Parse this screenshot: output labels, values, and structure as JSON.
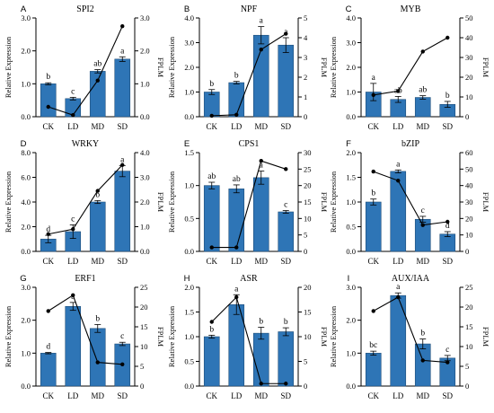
{
  "figure": {
    "bar_color": "#2e75b6",
    "bar_edge": "#1f4e79",
    "line_color": "#000000"
  },
  "chart_data": [
    {
      "type": "bar",
      "panel": "A",
      "title": "SPI2",
      "categories": [
        "CK",
        "LD",
        "MD",
        "SD"
      ],
      "ylabel": "Relative Expression",
      "y2label": "FPLM",
      "ylim": [
        0.0,
        3.0
      ],
      "yticks": [
        0.0,
        1.0,
        2.0,
        3.0
      ],
      "yticklabels": [
        "0.0",
        "1.0",
        "2.0",
        "3.0"
      ],
      "y2lim": [
        0.0,
        3.0
      ],
      "y2ticks": [
        0.0,
        1.0,
        2.0,
        3.0
      ],
      "y2ticklabels": [
        "0.0",
        "1.0",
        "2.0",
        "3.0"
      ],
      "series": [
        {
          "kind": "bar",
          "axis": "left",
          "values": [
            1.0,
            0.55,
            1.38,
            1.75
          ],
          "errors": [
            0.03,
            0.04,
            0.05,
            0.07
          ],
          "labels": [
            "b",
            "c",
            "ab",
            "a"
          ]
        },
        {
          "kind": "line",
          "axis": "right",
          "values": [
            0.3,
            0.05,
            1.1,
            2.75
          ]
        }
      ]
    },
    {
      "type": "bar",
      "panel": "B",
      "title": "NPF",
      "categories": [
        "CK",
        "LD",
        "MD",
        "SD"
      ],
      "ylabel": "Relative Expression",
      "y2label": "FPLM",
      "ylim": [
        0.0,
        4.0
      ],
      "yticks": [
        0.0,
        1.0,
        2.0,
        3.0,
        4.0
      ],
      "yticklabels": [
        "0.0",
        "1.0",
        "2.0",
        "3.0",
        "4.0"
      ],
      "y2lim": [
        0,
        5
      ],
      "y2ticks": [
        0,
        1,
        2,
        3,
        4,
        5
      ],
      "y2ticklabels": [
        "0",
        "1",
        "2",
        "3",
        "4",
        "5"
      ],
      "series": [
        {
          "kind": "bar",
          "axis": "left",
          "values": [
            1.0,
            1.38,
            3.3,
            2.9
          ],
          "errors": [
            0.1,
            0.05,
            0.35,
            0.3
          ],
          "labels": [
            "b",
            "b",
            "a",
            "a"
          ]
        },
        {
          "kind": "line",
          "axis": "right",
          "values": [
            0.05,
            0.1,
            3.4,
            4.2
          ]
        }
      ]
    },
    {
      "type": "bar",
      "panel": "C",
      "title": "MYB",
      "categories": [
        "CK",
        "LD",
        "MD",
        "SD"
      ],
      "ylabel": "Relative Expression",
      "y2label": "FPLM",
      "ylim": [
        0.0,
        4.0
      ],
      "yticks": [
        0.0,
        1.0,
        2.0,
        3.0,
        4.0
      ],
      "yticklabels": [
        "0.0",
        "1.0",
        "2.0",
        "3.0",
        "4.0"
      ],
      "y2lim": [
        0,
        50
      ],
      "y2ticks": [
        0,
        10,
        20,
        30,
        40,
        50
      ],
      "y2ticklabels": [
        "0",
        "10",
        "20",
        "30",
        "40",
        "50"
      ],
      "series": [
        {
          "kind": "bar",
          "axis": "left",
          "values": [
            1.0,
            0.7,
            0.78,
            0.5
          ],
          "errors": [
            0.35,
            0.12,
            0.07,
            0.12
          ],
          "labels": [
            "a",
            "ab",
            "ab",
            "b"
          ]
        },
        {
          "kind": "line",
          "axis": "right",
          "values": [
            11,
            13,
            33,
            40
          ]
        }
      ]
    },
    {
      "type": "bar",
      "panel": "D",
      "title": "WRKY",
      "categories": [
        "CK",
        "LD",
        "MD",
        "SD"
      ],
      "ylabel": "Relative Expression",
      "y2label": "FPLM",
      "ylim": [
        0.0,
        8.0
      ],
      "yticks": [
        0.0,
        2.0,
        4.0,
        6.0,
        8.0
      ],
      "yticklabels": [
        "0.0",
        "2.0",
        "4.0",
        "6.0",
        "8.0"
      ],
      "y2lim": [
        0.0,
        4.0
      ],
      "y2ticks": [
        0.0,
        1.0,
        2.0,
        3.0,
        4.0
      ],
      "y2ticklabels": [
        "0.0",
        "1.0",
        "2.0",
        "3.0",
        "4.0"
      ],
      "series": [
        {
          "kind": "bar",
          "axis": "left",
          "values": [
            1.0,
            1.6,
            4.0,
            6.5
          ],
          "errors": [
            0.3,
            0.55,
            0.12,
            0.45
          ],
          "labels": [
            "d",
            "c",
            "b",
            "a"
          ]
        },
        {
          "kind": "line",
          "axis": "right",
          "values": [
            0.7,
            0.9,
            2.45,
            3.5
          ]
        }
      ]
    },
    {
      "type": "bar",
      "panel": "E",
      "title": "CPS1",
      "categories": [
        "CK",
        "LD",
        "MD",
        "SD"
      ],
      "ylabel": "Relative Expression",
      "y2label": "FPLM",
      "ylim": [
        0.0,
        1.5
      ],
      "yticks": [
        0.0,
        0.5,
        1.0,
        1.5
      ],
      "yticklabels": [
        "0.0",
        "0.5",
        "1.0",
        "1.5"
      ],
      "y2lim": [
        0,
        30
      ],
      "y2ticks": [
        0,
        5,
        10,
        15,
        20,
        25,
        30
      ],
      "y2ticklabels": [
        "0",
        "5",
        "10",
        "15",
        "20",
        "25",
        "30"
      ],
      "series": [
        {
          "kind": "bar",
          "axis": "left",
          "values": [
            1.0,
            0.95,
            1.12,
            0.6
          ],
          "errors": [
            0.05,
            0.06,
            0.1,
            0.02
          ],
          "labels": [
            "ab",
            "ab",
            "a",
            "c"
          ]
        },
        {
          "kind": "line",
          "axis": "right",
          "values": [
            1.2,
            1.2,
            27.5,
            25
          ]
        }
      ]
    },
    {
      "type": "bar",
      "panel": "F",
      "title": "bZIP",
      "categories": [
        "CK",
        "LD",
        "MD",
        "SD"
      ],
      "ylabel": "Relative Expression",
      "y2label": "FPLM",
      "ylim": [
        0.0,
        2.0
      ],
      "yticks": [
        0.0,
        0.5,
        1.0,
        1.5,
        2.0
      ],
      "yticklabels": [
        "0.0",
        "0.5",
        "1.0",
        "1.5",
        "2.0"
      ],
      "y2lim": [
        0,
        60
      ],
      "y2ticks": [
        0,
        10,
        20,
        30,
        40,
        50,
        60
      ],
      "y2ticklabels": [
        "0",
        "10",
        "20",
        "30",
        "40",
        "50",
        "60"
      ],
      "series": [
        {
          "kind": "bar",
          "axis": "left",
          "values": [
            1.0,
            1.62,
            0.65,
            0.35
          ],
          "errors": [
            0.06,
            0.03,
            0.06,
            0.05
          ],
          "labels": [
            "b",
            "a",
            "c",
            "d"
          ]
        },
        {
          "kind": "line",
          "axis": "right",
          "values": [
            48.5,
            43,
            16,
            18
          ]
        }
      ]
    },
    {
      "type": "bar",
      "panel": "G",
      "title": "ERF1",
      "categories": [
        "CK",
        "LD",
        "MD",
        "SD"
      ],
      "ylabel": "Relative Expression",
      "y2label": "FPLM",
      "ylim": [
        0.0,
        3.0
      ],
      "yticks": [
        0.0,
        1.0,
        2.0,
        3.0
      ],
      "yticklabels": [
        "0.0",
        "1.0",
        "2.0",
        "3.0"
      ],
      "y2lim": [
        0,
        25
      ],
      "y2ticks": [
        0,
        5,
        10,
        15,
        20,
        25
      ],
      "y2ticklabels": [
        "0",
        "5",
        "10",
        "15",
        "20",
        "25"
      ],
      "series": [
        {
          "kind": "bar",
          "axis": "left",
          "values": [
            1.0,
            2.42,
            1.75,
            1.28
          ],
          "errors": [
            0.02,
            0.12,
            0.12,
            0.05
          ],
          "labels": [
            "d",
            "a",
            "b",
            "c"
          ]
        },
        {
          "kind": "line",
          "axis": "right",
          "values": [
            19,
            23,
            6,
            5.5
          ]
        }
      ]
    },
    {
      "type": "bar",
      "panel": "H",
      "title": "ASR",
      "categories": [
        "CK",
        "LD",
        "MD",
        "SD"
      ],
      "ylabel": "Relative Expression",
      "y2label": "FPLM",
      "ylim": [
        0.0,
        2.0
      ],
      "yticks": [
        0.0,
        0.5,
        1.0,
        1.5,
        2.0
      ],
      "yticklabels": [
        "0.0",
        "0.5",
        "1.0",
        "1.5",
        "2.0"
      ],
      "y2lim": [
        0,
        20
      ],
      "y2ticks": [
        0,
        5,
        10,
        15,
        20
      ],
      "y2ticklabels": [
        "0",
        "5",
        "10",
        "15",
        "20"
      ],
      "series": [
        {
          "kind": "bar",
          "axis": "left",
          "values": [
            1.0,
            1.65,
            1.07,
            1.1
          ],
          "errors": [
            0.03,
            0.2,
            0.12,
            0.08
          ],
          "labels": [
            "b",
            "a",
            "b",
            "b"
          ]
        },
        {
          "kind": "line",
          "axis": "right",
          "values": [
            13,
            18,
            0.5,
            0.5
          ]
        }
      ]
    },
    {
      "type": "bar",
      "panel": "I",
      "title": "AUX/IAA",
      "categories": [
        "CK",
        "LD",
        "MD",
        "SD"
      ],
      "ylabel": "Relative Expression",
      "y2label": "FPLM",
      "ylim": [
        0.0,
        3.0
      ],
      "yticks": [
        0.0,
        1.0,
        2.0,
        3.0
      ],
      "yticklabels": [
        "0.0",
        "1.0",
        "2.0",
        "3.0"
      ],
      "y2lim": [
        0,
        25
      ],
      "y2ticks": [
        0,
        5,
        10,
        15,
        20,
        25
      ],
      "y2ticklabels": [
        "0",
        "5",
        "10",
        "15",
        "20",
        "25"
      ],
      "series": [
        {
          "kind": "bar",
          "axis": "left",
          "values": [
            1.0,
            2.75,
            1.28,
            0.85
          ],
          "errors": [
            0.06,
            0.08,
            0.15,
            0.08
          ],
          "labels": [
            "bc",
            "a",
            "b",
            "c"
          ]
        },
        {
          "kind": "line",
          "axis": "right",
          "values": [
            19,
            22.5,
            6.5,
            6
          ]
        }
      ]
    }
  ]
}
